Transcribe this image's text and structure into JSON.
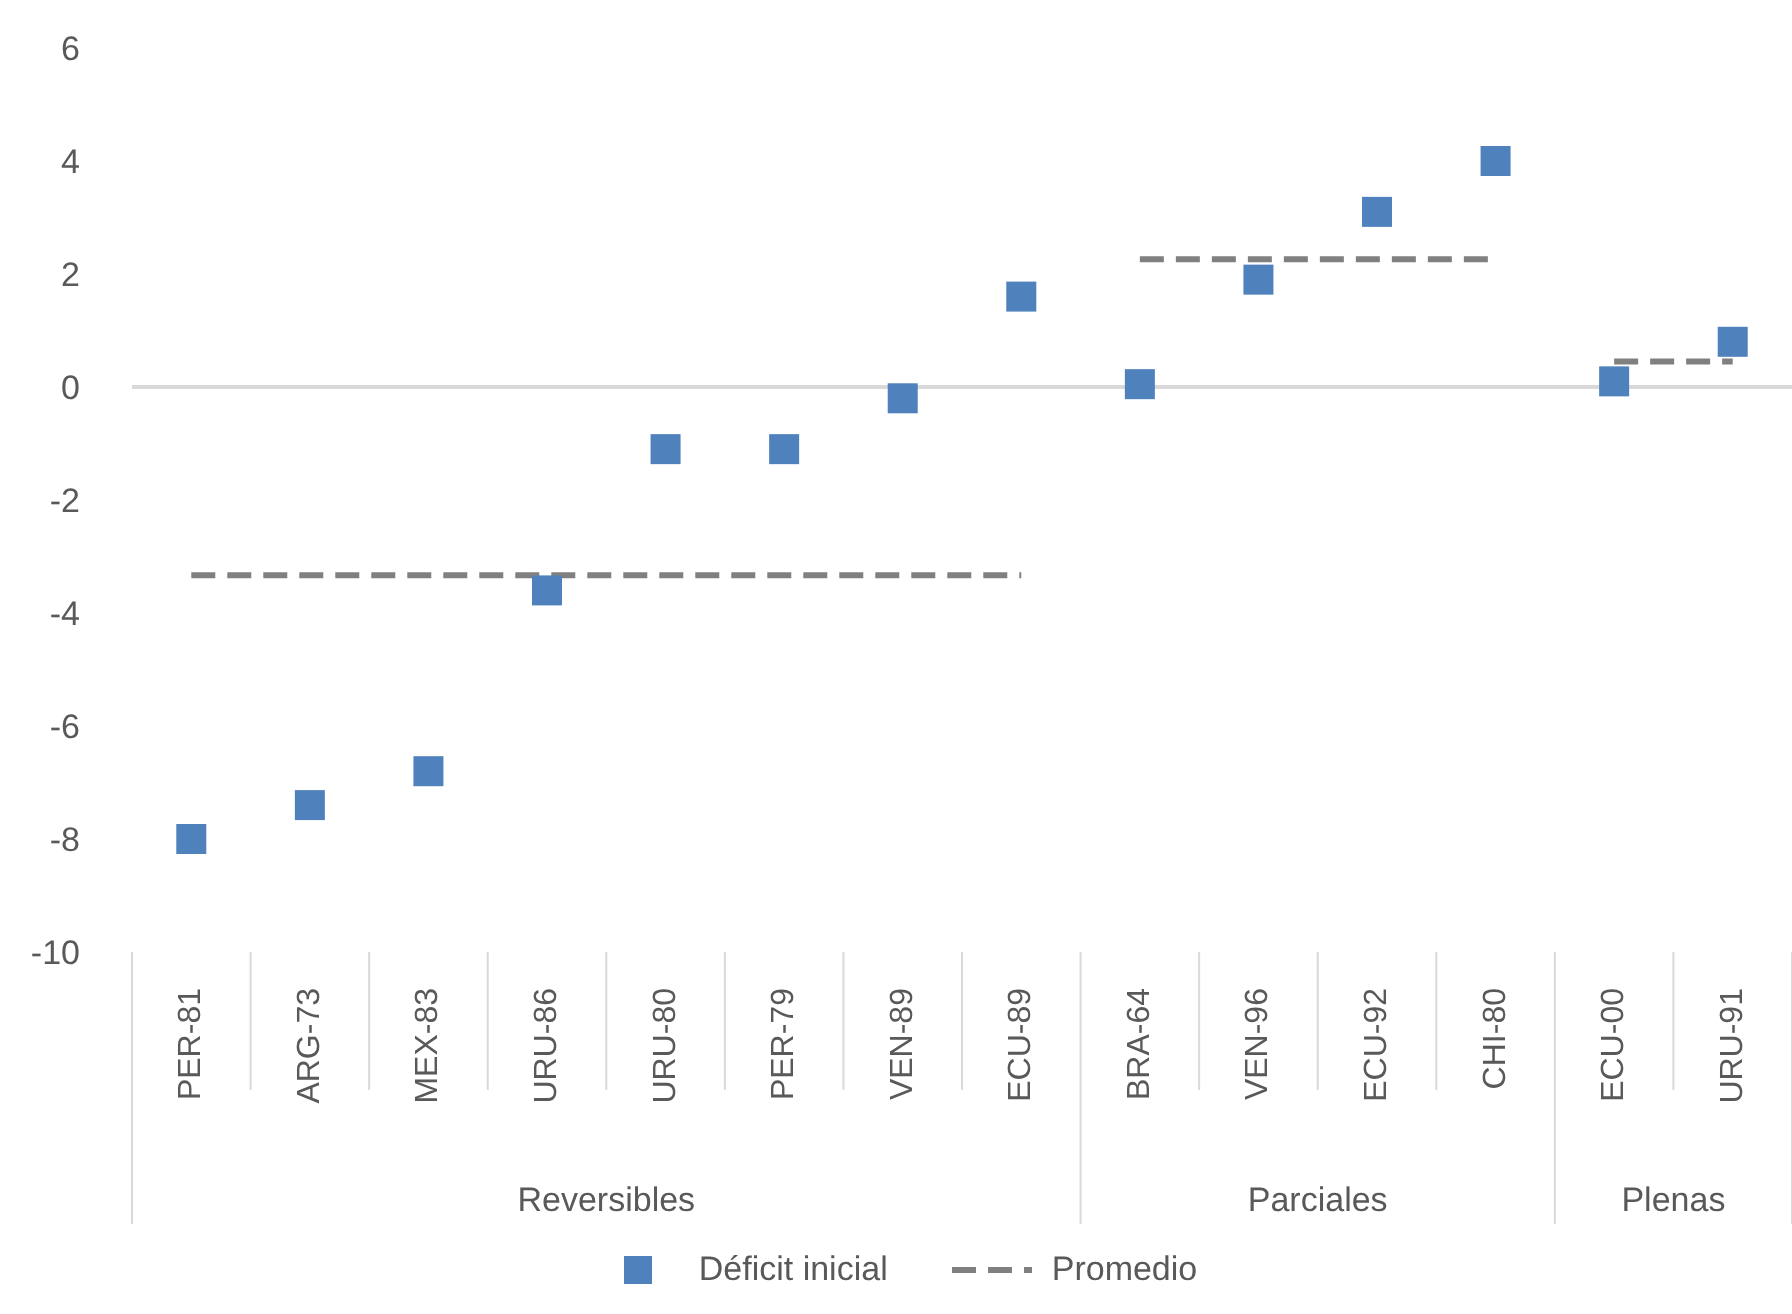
{
  "chart_data": {
    "type": "scatter",
    "categories": [
      "PER-81",
      "ARG-73",
      "MEX-83",
      "URU-86",
      "URU-80",
      "PER-79",
      "VEN-89",
      "ECU-89",
      "BRA-64",
      "VEN-96",
      "ECU-92",
      "CHI-80",
      "ECU-00",
      "URU-91"
    ],
    "series": [
      {
        "name": "Déficit inicial",
        "marker": "square",
        "color": "#4f81bd",
        "values": [
          -8.0,
          -7.4,
          -6.8,
          -3.6,
          -1.1,
          -1.1,
          -0.2,
          1.6,
          0.05,
          1.9,
          3.1,
          4.0,
          0.1,
          0.8
        ]
      },
      {
        "name": "Promedio",
        "type": "line",
        "line_style": "dashed",
        "color": "#808080",
        "values": [
          -3.33,
          -3.33,
          -3.33,
          -3.33,
          -3.33,
          -3.33,
          -3.33,
          -3.33,
          null,
          null,
          null,
          null,
          null,
          null
        ]
      },
      {
        "type": "line",
        "line_style": "dashed",
        "color": "#808080",
        "values": [
          null,
          null,
          null,
          null,
          null,
          null,
          null,
          null,
          2.26,
          2.26,
          2.26,
          2.26,
          null,
          null
        ]
      },
      {
        "type": "line",
        "line_style": "dashed",
        "color": "#808080",
        "values": [
          null,
          null,
          null,
          null,
          null,
          null,
          null,
          null,
          null,
          null,
          null,
          null,
          0.45,
          0.45
        ]
      }
    ],
    "ylim": [
      -10,
      6
    ],
    "yticks": [
      -10,
      -8,
      -6,
      -4,
      -2,
      0,
      2,
      4,
      6
    ],
    "ref_lines": [
      {
        "axis": "y",
        "value": 0,
        "color": "#d9d9d9"
      }
    ],
    "annotations": [
      "Reversibles",
      "Parciales",
      "Plenas"
    ],
    "legend": "bottom"
  }
}
